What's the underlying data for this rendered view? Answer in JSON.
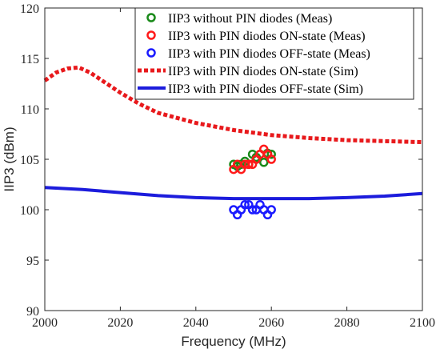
{
  "chart_data": {
    "type": "scatter",
    "xlabel": "Frequency (MHz)",
    "ylabel": "IIP3 (dBm)",
    "xlim": [
      2000,
      2100
    ],
    "ylim": [
      90,
      120
    ],
    "xticks": [
      2000,
      2020,
      2040,
      2060,
      2080,
      2100
    ],
    "yticks": [
      90,
      95,
      100,
      105,
      110,
      115,
      120
    ],
    "grid": false,
    "legend_position": "top-right",
    "series": [
      {
        "name": "IIP3 without PIN diodes (Meas)",
        "kind": "markers",
        "color": "#1a8a1a",
        "points": [
          [
            2050,
            104.5
          ],
          [
            2051,
            104.3
          ],
          [
            2052,
            104.5
          ],
          [
            2053,
            104.8
          ],
          [
            2054,
            104.5
          ],
          [
            2055,
            105.5
          ],
          [
            2056,
            105.2
          ],
          [
            2057,
            105.5
          ],
          [
            2058,
            104.7
          ],
          [
            2059,
            105.6
          ],
          [
            2060,
            105.5
          ]
        ]
      },
      {
        "name": "IIP3 with PIN diodes ON-state (Meas)",
        "kind": "markers",
        "color": "#ff1a1a",
        "points": [
          [
            2050,
            104.0
          ],
          [
            2051,
            104.5
          ],
          [
            2052,
            104.0
          ],
          [
            2053,
            104.5
          ],
          [
            2054,
            104.5
          ],
          [
            2055,
            104.5
          ],
          [
            2056,
            105.0
          ],
          [
            2057,
            105.5
          ],
          [
            2058,
            106.0
          ],
          [
            2059,
            105.5
          ],
          [
            2060,
            105.0
          ]
        ]
      },
      {
        "name": "IIP3 with PIN diodes OFF-state (Meas)",
        "kind": "markers",
        "color": "#1a1aff",
        "points": [
          [
            2050,
            100.0
          ],
          [
            2051,
            99.5
          ],
          [
            2052,
            100.0
          ],
          [
            2053,
            100.5
          ],
          [
            2054,
            100.5
          ],
          [
            2055,
            100.0
          ],
          [
            2056,
            100.0
          ],
          [
            2057,
            100.5
          ],
          [
            2058,
            100.0
          ],
          [
            2059,
            99.5
          ],
          [
            2060,
            100.0
          ]
        ]
      },
      {
        "name": "IIP3 with PIN diodes ON-state (Sim)",
        "kind": "dotted-line",
        "color": "#e8191c",
        "points": [
          [
            2000,
            112.8
          ],
          [
            2003,
            113.6
          ],
          [
            2006,
            114.0
          ],
          [
            2009,
            114.1
          ],
          [
            2012,
            113.6
          ],
          [
            2016,
            112.6
          ],
          [
            2020,
            111.6
          ],
          [
            2025,
            110.5
          ],
          [
            2030,
            109.6
          ],
          [
            2040,
            108.6
          ],
          [
            2050,
            107.9
          ],
          [
            2060,
            107.4
          ],
          [
            2070,
            107.1
          ],
          [
            2080,
            106.9
          ],
          [
            2090,
            106.8
          ],
          [
            2100,
            106.7
          ]
        ]
      },
      {
        "name": "IIP3 with PIN diodes OFF-state (Sim)",
        "kind": "solid-line",
        "color": "#1c1cdc",
        "points": [
          [
            2000,
            102.2
          ],
          [
            2010,
            102.0
          ],
          [
            2020,
            101.7
          ],
          [
            2030,
            101.4
          ],
          [
            2040,
            101.2
          ],
          [
            2050,
            101.1
          ],
          [
            2060,
            101.1
          ],
          [
            2070,
            101.1
          ],
          [
            2080,
            101.2
          ],
          [
            2090,
            101.35
          ],
          [
            2100,
            101.6
          ]
        ]
      }
    ]
  }
}
